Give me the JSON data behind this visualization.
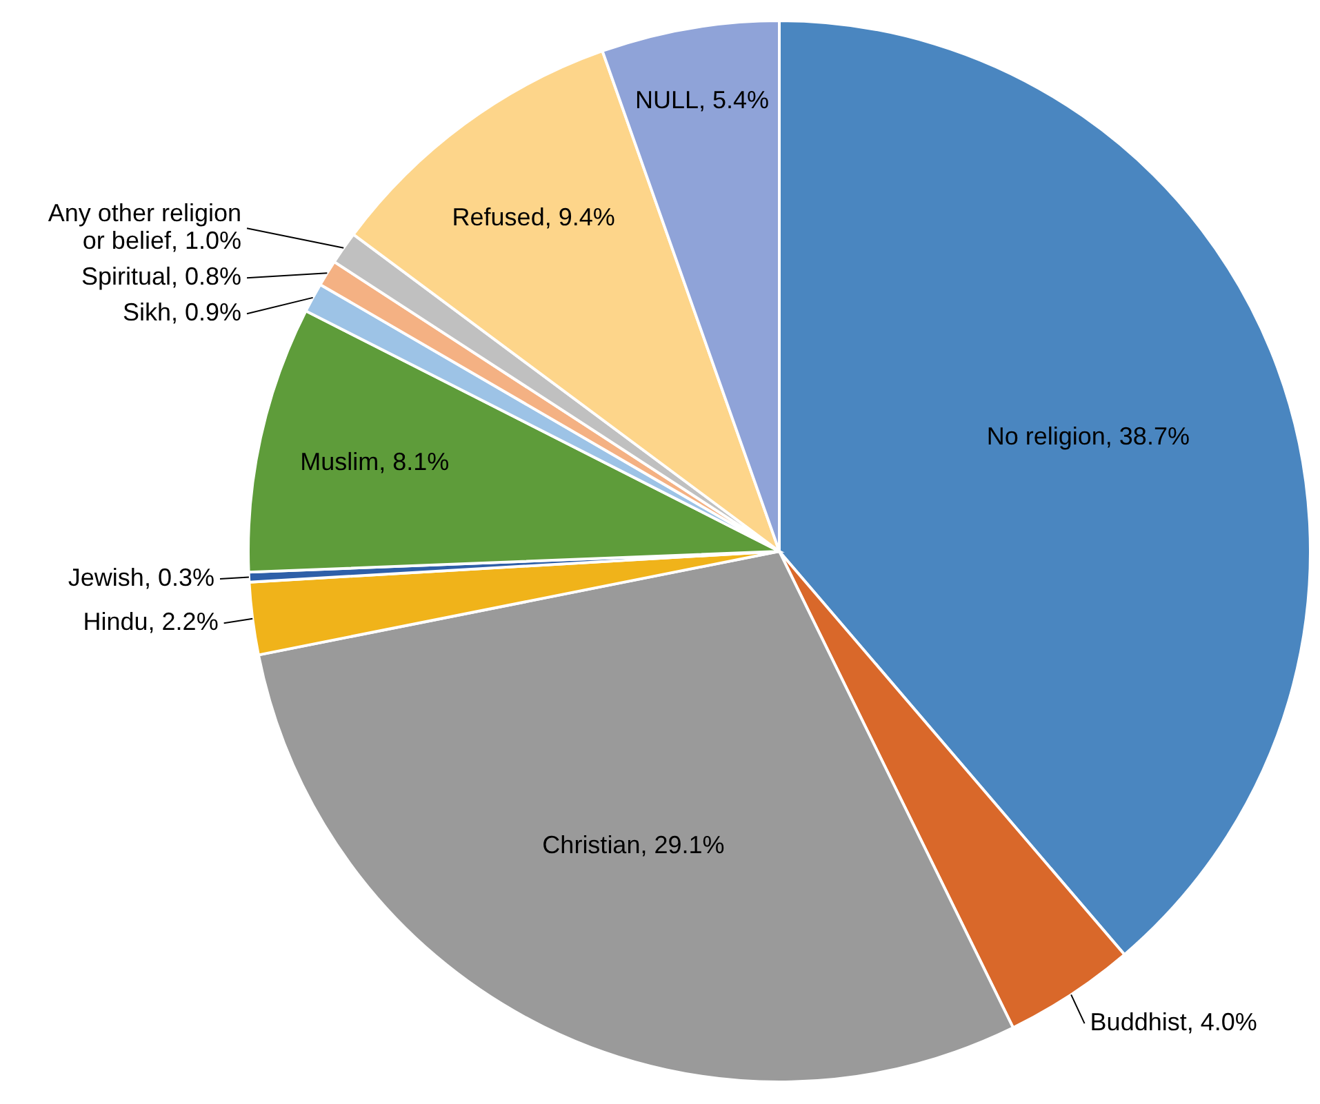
{
  "chart_data": {
    "type": "pie",
    "categories": [
      "No religion",
      "Buddhist",
      "Christian",
      "Hindu",
      "Jewish",
      "Muslim",
      "Sikh",
      "Spiritual",
      "Any other religion or belief",
      "Refused",
      "NULL"
    ],
    "values": [
      38.7,
      4.0,
      29.1,
      2.2,
      0.3,
      8.1,
      0.9,
      0.8,
      1.0,
      9.4,
      5.4
    ],
    "value_labels": [
      "38.7%",
      "4.0%",
      "29.1%",
      "2.2%",
      "0.3%",
      "8.1%",
      "0.9%",
      "0.8%",
      "1.0%",
      "9.4%",
      "5.4%"
    ],
    "colors": [
      "#4a86c0",
      "#d9682a",
      "#9a9a9a",
      "#f0b31a",
      "#2e5fa8",
      "#5e9c3a",
      "#9dc3e6",
      "#f4b183",
      "#c0c0c0",
      "#fdd58a",
      "#8fa3d8"
    ]
  }
}
